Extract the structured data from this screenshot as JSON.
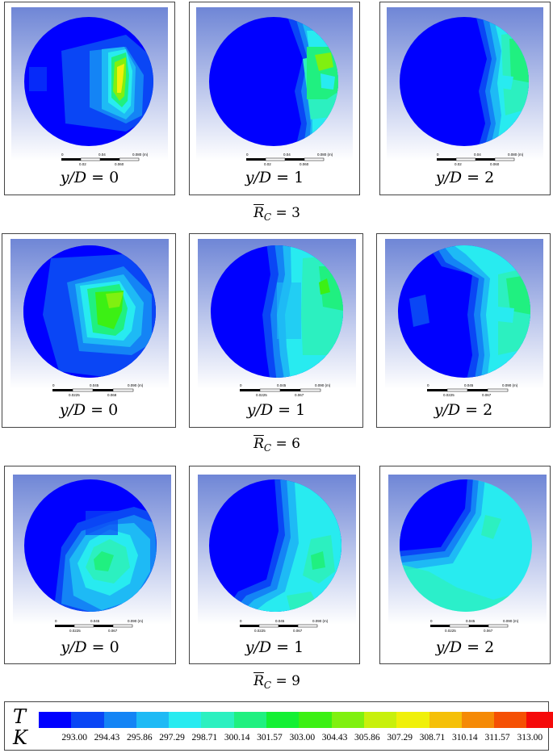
{
  "panels": [
    {
      "label_var": "y/D",
      "label_eq": "= 0",
      "scale_top": [
        "0",
        "0.04",
        "0.080 (m)"
      ],
      "scale_bottom": [
        "0.02",
        "0.060"
      ]
    },
    {
      "label_var": "y/D",
      "label_eq": "= 1",
      "scale_top": [
        "0",
        "0.04",
        "0.080 (m)"
      ],
      "scale_bottom": [
        "0.02",
        "0.060"
      ]
    },
    {
      "label_var": "y/D",
      "label_eq": "= 2",
      "scale_top": [
        "0",
        "0.04",
        "0.080 (m)"
      ],
      "scale_bottom": [
        "0.02",
        "0.060"
      ]
    },
    {
      "label_var": "y/D",
      "label_eq": "= 0",
      "scale_top": [
        "0",
        "0.045",
        "0.090 (m)"
      ],
      "scale_bottom": [
        "0.0225",
        "0.068"
      ]
    },
    {
      "label_var": "y/D",
      "label_eq": "= 1",
      "scale_top": [
        "0",
        "0.045",
        "0.090 (m)"
      ],
      "scale_bottom": [
        "0.0225",
        "0.067"
      ]
    },
    {
      "label_var": "y/D",
      "label_eq": "= 2",
      "scale_top": [
        "0",
        "0.045",
        "0.090 (m)"
      ],
      "scale_bottom": [
        "0.0225",
        "0.067"
      ]
    },
    {
      "label_var": "y/D",
      "label_eq": "= 0",
      "scale_top": [
        "0",
        "0.045",
        "0.090 (m)"
      ],
      "scale_bottom": [
        "0.0225",
        "0.067"
      ]
    },
    {
      "label_var": "y/D",
      "label_eq": "= 1",
      "scale_top": [
        "0",
        "0.045",
        "0.090 (m)"
      ],
      "scale_bottom": [
        "0.0225",
        "0.067"
      ]
    },
    {
      "label_var": "y/D",
      "label_eq": "= 2",
      "scale_top": [
        "0",
        "0.045",
        "0.090 (m)"
      ],
      "scale_bottom": [
        "0.0225",
        "0.067"
      ]
    }
  ],
  "rows": [
    {
      "symbol": "R",
      "subscript": "C",
      "value": "= 3"
    },
    {
      "symbol": "R",
      "subscript": "C",
      "value": "= 6"
    },
    {
      "symbol": "R",
      "subscript": "C",
      "value": "= 9"
    }
  ],
  "legend": {
    "var": "T",
    "unit": "K",
    "colors": [
      "#0000ff",
      "#0a46f5",
      "#1484f5",
      "#1ebaf5",
      "#28ebf0",
      "#2cf0c0",
      "#20f080",
      "#14f034",
      "#3cf014",
      "#80f010",
      "#c8f00c",
      "#f0f00a",
      "#f5c008",
      "#f58a06",
      "#f55004",
      "#f50a0a"
    ],
    "ticks": [
      "293.00",
      "294.43",
      "295.86",
      "297.29",
      "298.71",
      "300.14",
      "301.57",
      "303.00",
      "304.43",
      "305.86",
      "307.29",
      "308.71",
      "310.14",
      "311.57",
      "313.00"
    ]
  },
  "colors": {
    "c0": "#0000ff",
    "c1": "#0a46f5",
    "c2": "#1484f5",
    "c3": "#1ebaf5",
    "c4": "#28ebf0",
    "c5": "#2cf0c0",
    "c6": "#20f080",
    "c7": "#14f034",
    "c8": "#3cf014",
    "c9": "#80f010",
    "c10": "#c8f00c",
    "c11": "#f0f00a",
    "bgTop": "#6f86d6",
    "bgBottom": "#ffffff"
  }
}
